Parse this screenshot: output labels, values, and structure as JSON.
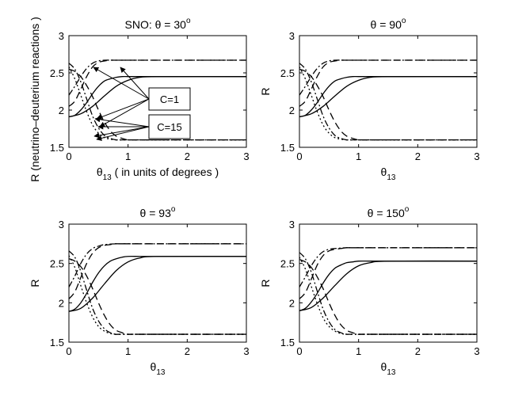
{
  "chart_data": [
    {
      "type": "line",
      "title": "SNO: θ = 30",
      "title_sup": "o",
      "ylabel": "R (neutrino–deuterium reactions )",
      "xlabel_main": "θ",
      "xlabel_sub": "13",
      "xlabel_suffix": " ( in units of degrees )",
      "xlim": [
        0,
        3
      ],
      "ylim": [
        1.5,
        3
      ],
      "xticks": [
        "0",
        "1",
        "2",
        "3"
      ],
      "yticks": [
        "1.5",
        "2",
        "2.5",
        "3"
      ],
      "annotations": [
        "C=1",
        "C=15"
      ],
      "series": [
        {
          "style": "solid",
          "x": [
            0,
            0.1,
            0.2,
            0.3,
            0.4,
            0.5,
            0.6,
            0.7,
            0.8,
            0.9,
            1.0,
            1.2,
            1.5,
            3
          ],
          "values": [
            1.91,
            1.93,
            2.0,
            2.1,
            2.22,
            2.32,
            2.39,
            2.42,
            2.44,
            2.45,
            2.45,
            2.45,
            2.45,
            2.45
          ]
        },
        {
          "style": "solid",
          "x": [
            0,
            0.2,
            0.4,
            0.6,
            0.8,
            1.0,
            1.2,
            1.5,
            3
          ],
          "values": [
            1.91,
            1.95,
            2.05,
            2.19,
            2.32,
            2.4,
            2.44,
            2.45,
            2.45
          ]
        },
        {
          "style": "dashed",
          "x": [
            0,
            0.1,
            0.2,
            0.3,
            0.4,
            0.5,
            0.6,
            0.7,
            0.8,
            1.0,
            3
          ],
          "values": [
            2.05,
            2.12,
            2.28,
            2.45,
            2.58,
            2.64,
            2.66,
            2.67,
            2.67,
            2.67,
            2.67
          ]
        },
        {
          "style": "dashdot",
          "x": [
            0,
            0.1,
            0.2,
            0.3,
            0.4,
            0.5,
            0.6,
            0.8,
            1.0,
            3
          ],
          "values": [
            2.2,
            2.32,
            2.45,
            2.56,
            2.63,
            2.66,
            2.67,
            2.67,
            2.67,
            2.67
          ]
        },
        {
          "style": "dotted",
          "x": [
            0,
            0.1,
            0.2,
            0.3,
            0.4,
            0.5,
            0.6,
            0.7,
            0.8,
            1.0,
            3
          ],
          "values": [
            2.58,
            2.42,
            2.2,
            1.98,
            1.8,
            1.69,
            1.63,
            1.61,
            1.6,
            1.6,
            1.6
          ]
        },
        {
          "style": "dashdot",
          "x": [
            0,
            0.1,
            0.2,
            0.3,
            0.4,
            0.5,
            0.6,
            0.7,
            0.8,
            1.0,
            3
          ],
          "values": [
            2.63,
            2.55,
            2.38,
            2.15,
            1.92,
            1.76,
            1.66,
            1.62,
            1.6,
            1.6,
            1.6
          ]
        },
        {
          "style": "dashed",
          "x": [
            0,
            0.1,
            0.2,
            0.3,
            0.4,
            0.5,
            0.6,
            0.7,
            0.8,
            0.9,
            1.0,
            1.2,
            3
          ],
          "values": [
            2.55,
            2.52,
            2.45,
            2.33,
            2.18,
            2.0,
            1.84,
            1.72,
            1.65,
            1.62,
            1.6,
            1.6,
            1.6
          ]
        }
      ]
    },
    {
      "type": "line",
      "title": "θ = 90",
      "title_sup": "o",
      "ylabel": "R",
      "xlabel_main": "θ",
      "xlabel_sub": "13",
      "xlabel_suffix": "",
      "xlim": [
        0,
        3
      ],
      "ylim": [
        1.5,
        3
      ],
      "xticks": [
        "0",
        "1",
        "2",
        "3"
      ],
      "yticks": [
        "1.5",
        "2",
        "2.5",
        "3"
      ],
      "series": [
        {
          "style": "solid",
          "x": [
            0,
            0.1,
            0.2,
            0.3,
            0.4,
            0.5,
            0.6,
            0.7,
            0.8,
            0.9,
            1.0,
            1.2,
            1.5,
            3
          ],
          "values": [
            1.91,
            1.93,
            2.0,
            2.1,
            2.22,
            2.32,
            2.39,
            2.42,
            2.44,
            2.45,
            2.45,
            2.45,
            2.45,
            2.45
          ]
        },
        {
          "style": "solid",
          "x": [
            0,
            0.2,
            0.4,
            0.6,
            0.8,
            1.0,
            1.2,
            1.5,
            3
          ],
          "values": [
            1.91,
            1.95,
            2.05,
            2.19,
            2.32,
            2.4,
            2.44,
            2.45,
            2.45
          ]
        },
        {
          "style": "dashed",
          "x": [
            0,
            0.1,
            0.2,
            0.3,
            0.4,
            0.5,
            0.6,
            0.7,
            0.8,
            1.0,
            3
          ],
          "values": [
            2.05,
            2.12,
            2.28,
            2.45,
            2.58,
            2.64,
            2.66,
            2.67,
            2.67,
            2.67,
            2.67
          ]
        },
        {
          "style": "dashdot",
          "x": [
            0,
            0.1,
            0.2,
            0.3,
            0.4,
            0.5,
            0.6,
            0.8,
            1.0,
            3
          ],
          "values": [
            2.2,
            2.32,
            2.45,
            2.56,
            2.63,
            2.66,
            2.67,
            2.67,
            2.67,
            2.67
          ]
        },
        {
          "style": "dotted",
          "x": [
            0,
            0.1,
            0.2,
            0.3,
            0.4,
            0.5,
            0.6,
            0.7,
            0.8,
            1.0,
            3
          ],
          "values": [
            2.58,
            2.42,
            2.2,
            1.98,
            1.8,
            1.69,
            1.63,
            1.61,
            1.6,
            1.6,
            1.6
          ]
        },
        {
          "style": "dashdot",
          "x": [
            0,
            0.1,
            0.2,
            0.3,
            0.4,
            0.5,
            0.6,
            0.7,
            0.8,
            1.0,
            3
          ],
          "values": [
            2.63,
            2.55,
            2.38,
            2.15,
            1.92,
            1.76,
            1.66,
            1.62,
            1.6,
            1.6,
            1.6
          ]
        },
        {
          "style": "dashed",
          "x": [
            0,
            0.1,
            0.2,
            0.3,
            0.4,
            0.5,
            0.6,
            0.7,
            0.8,
            0.9,
            1.0,
            1.2,
            3
          ],
          "values": [
            2.55,
            2.52,
            2.45,
            2.33,
            2.18,
            2.0,
            1.84,
            1.72,
            1.65,
            1.62,
            1.6,
            1.6,
            1.6
          ]
        }
      ]
    },
    {
      "type": "line",
      "title": "θ = 93",
      "title_sup": "o",
      "ylabel": "R",
      "xlabel_main": "θ",
      "xlabel_sub": "13",
      "xlabel_suffix": "",
      "xlim": [
        0,
        3
      ],
      "ylim": [
        1.5,
        3
      ],
      "xticks": [
        "0",
        "1",
        "2",
        "3"
      ],
      "yticks": [
        "1.5",
        "2",
        "2.5",
        "3"
      ],
      "series": [
        {
          "style": "solid",
          "x": [
            0,
            0.1,
            0.2,
            0.3,
            0.4,
            0.5,
            0.6,
            0.7,
            0.8,
            0.9,
            1.0,
            1.2,
            1.5,
            3
          ],
          "values": [
            1.89,
            1.92,
            2.0,
            2.12,
            2.26,
            2.38,
            2.47,
            2.53,
            2.56,
            2.58,
            2.59,
            2.59,
            2.59,
            2.59
          ]
        },
        {
          "style": "solid",
          "x": [
            0,
            0.2,
            0.4,
            0.6,
            0.8,
            1.0,
            1.2,
            1.5,
            3
          ],
          "values": [
            1.89,
            1.93,
            2.06,
            2.24,
            2.41,
            2.52,
            2.57,
            2.59,
            2.59
          ]
        },
        {
          "style": "dashed",
          "x": [
            0,
            0.1,
            0.2,
            0.3,
            0.4,
            0.5,
            0.6,
            0.7,
            0.8,
            1.0,
            3
          ],
          "values": [
            2.05,
            2.14,
            2.32,
            2.5,
            2.63,
            2.7,
            2.73,
            2.74,
            2.75,
            2.75,
            2.75
          ]
        },
        {
          "style": "dashdot",
          "x": [
            0,
            0.1,
            0.2,
            0.3,
            0.4,
            0.5,
            0.6,
            0.8,
            1.0,
            3
          ],
          "values": [
            2.2,
            2.34,
            2.5,
            2.62,
            2.69,
            2.72,
            2.74,
            2.75,
            2.75,
            2.75
          ]
        },
        {
          "style": "dotted",
          "x": [
            0,
            0.1,
            0.2,
            0.3,
            0.4,
            0.5,
            0.6,
            0.7,
            0.8,
            1.0,
            3
          ],
          "values": [
            2.6,
            2.45,
            2.22,
            2.0,
            1.82,
            1.7,
            1.64,
            1.61,
            1.6,
            1.6,
            1.6
          ]
        },
        {
          "style": "dashdot",
          "x": [
            0,
            0.1,
            0.2,
            0.3,
            0.4,
            0.5,
            0.6,
            0.7,
            0.8,
            1.0,
            3
          ],
          "values": [
            2.66,
            2.58,
            2.4,
            2.16,
            1.93,
            1.77,
            1.67,
            1.62,
            1.6,
            1.6,
            1.6
          ]
        },
        {
          "style": "dashed",
          "x": [
            0,
            0.1,
            0.2,
            0.3,
            0.4,
            0.5,
            0.6,
            0.7,
            0.8,
            0.9,
            1.0,
            1.2,
            3
          ],
          "values": [
            2.56,
            2.53,
            2.46,
            2.34,
            2.18,
            2.0,
            1.84,
            1.72,
            1.65,
            1.62,
            1.6,
            1.6,
            1.6
          ]
        }
      ]
    },
    {
      "type": "line",
      "title": "θ = 150",
      "title_sup": "o",
      "ylabel": "R",
      "xlabel_main": "θ",
      "xlabel_sub": "13",
      "xlabel_suffix": "",
      "xlim": [
        0,
        3
      ],
      "ylim": [
        1.5,
        3
      ],
      "xticks": [
        "0",
        "1",
        "2",
        "3"
      ],
      "yticks": [
        "1.5",
        "2",
        "2.5",
        "3"
      ],
      "series": [
        {
          "style": "solid",
          "x": [
            0,
            0.1,
            0.2,
            0.3,
            0.4,
            0.5,
            0.6,
            0.7,
            0.8,
            0.9,
            1.0,
            1.2,
            1.5,
            3
          ],
          "values": [
            1.9,
            1.93,
            2.01,
            2.12,
            2.25,
            2.36,
            2.44,
            2.48,
            2.51,
            2.52,
            2.53,
            2.53,
            2.53,
            2.53
          ]
        },
        {
          "style": "solid",
          "x": [
            0,
            0.2,
            0.4,
            0.6,
            0.8,
            1.0,
            1.2,
            1.5,
            3
          ],
          "values": [
            1.9,
            1.94,
            2.06,
            2.22,
            2.37,
            2.47,
            2.51,
            2.53,
            2.53
          ]
        },
        {
          "style": "dashed",
          "x": [
            0,
            0.1,
            0.2,
            0.3,
            0.4,
            0.5,
            0.6,
            0.7,
            0.8,
            1.0,
            3
          ],
          "values": [
            2.05,
            2.13,
            2.3,
            2.48,
            2.6,
            2.66,
            2.68,
            2.69,
            2.7,
            2.7,
            2.7
          ]
        },
        {
          "style": "dashdot",
          "x": [
            0,
            0.1,
            0.2,
            0.3,
            0.4,
            0.5,
            0.6,
            0.8,
            1.0,
            3
          ],
          "values": [
            2.2,
            2.33,
            2.47,
            2.58,
            2.65,
            2.68,
            2.69,
            2.7,
            2.7,
            2.7
          ]
        },
        {
          "style": "dotted",
          "x": [
            0,
            0.1,
            0.2,
            0.3,
            0.4,
            0.5,
            0.6,
            0.7,
            0.8,
            1.0,
            3
          ],
          "values": [
            2.58,
            2.43,
            2.21,
            1.99,
            1.81,
            1.7,
            1.64,
            1.61,
            1.6,
            1.6,
            1.6
          ]
        },
        {
          "style": "dashdot",
          "x": [
            0,
            0.1,
            0.2,
            0.3,
            0.4,
            0.5,
            0.6,
            0.7,
            0.8,
            1.0,
            3
          ],
          "values": [
            2.64,
            2.56,
            2.39,
            2.15,
            1.92,
            1.76,
            1.66,
            1.62,
            1.6,
            1.6,
            1.6
          ]
        },
        {
          "style": "dashed",
          "x": [
            0,
            0.1,
            0.2,
            0.3,
            0.4,
            0.5,
            0.6,
            0.7,
            0.8,
            0.9,
            1.0,
            1.2,
            3
          ],
          "values": [
            2.55,
            2.52,
            2.45,
            2.33,
            2.18,
            2.0,
            1.84,
            1.72,
            1.65,
            1.62,
            1.6,
            1.6,
            1.6
          ]
        }
      ]
    }
  ]
}
